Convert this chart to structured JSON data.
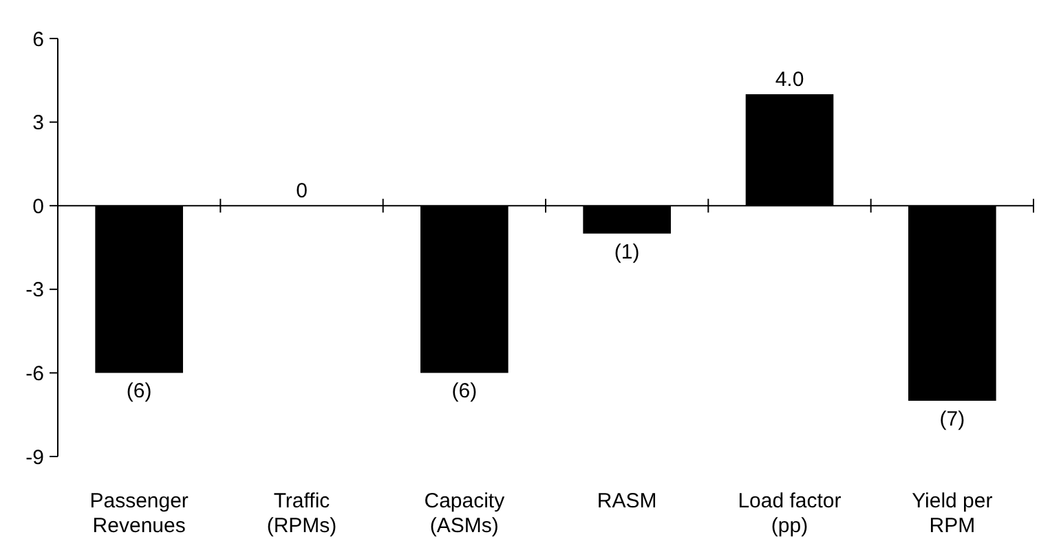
{
  "chart_data": {
    "type": "bar",
    "categories": [
      "Passenger Revenues",
      "Traffic (RPMs)",
      "Capacity (ASMs)",
      "RASM",
      "Load factor (pp)",
      "Yield per RPM"
    ],
    "values": [
      -6,
      0,
      -6,
      -1,
      4.0,
      -7
    ],
    "value_labels": [
      "(6)",
      "0",
      "(6)",
      "(1)",
      "4.0",
      "(7)"
    ],
    "color": "#000000",
    "ylim": [
      -9,
      6
    ],
    "yticks": [
      -9,
      -6,
      -3,
      0,
      3,
      6
    ]
  }
}
